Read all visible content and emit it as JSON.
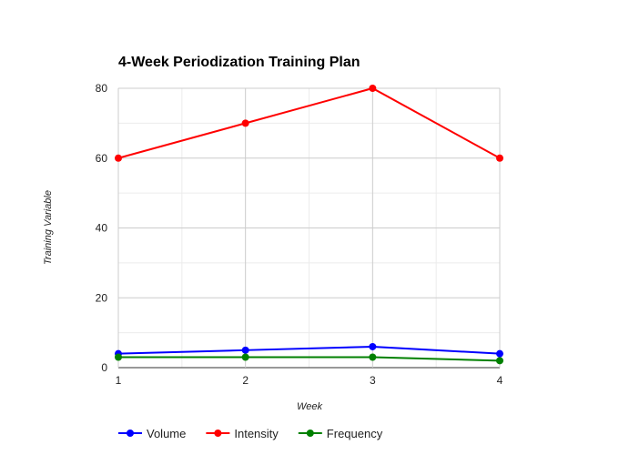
{
  "chart_data": {
    "type": "line",
    "title": "4-Week Periodization Training Plan",
    "xlabel": "Week",
    "ylabel": "Training Variable",
    "x": [
      1,
      2,
      3,
      4
    ],
    "x_ticks": [
      "1",
      "2",
      "3",
      "4"
    ],
    "ylim": [
      0,
      80
    ],
    "y_ticks": [
      "0",
      "20",
      "40",
      "60",
      "80"
    ],
    "grid": true,
    "legend_position": "bottom-left",
    "series": [
      {
        "name": "Volume",
        "color": "#0000ff",
        "values": [
          4,
          5,
          6,
          4
        ]
      },
      {
        "name": "Intensity",
        "color": "#ff0000",
        "values": [
          60,
          70,
          80,
          60
        ]
      },
      {
        "name": "Frequency",
        "color": "#008000",
        "values": [
          3,
          3,
          3,
          2
        ]
      }
    ]
  }
}
